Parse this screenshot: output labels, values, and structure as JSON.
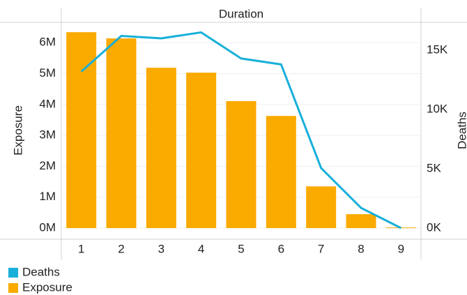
{
  "chart_data": {
    "type": "bar-line",
    "title": "Duration",
    "y_label": "Exposure",
    "y2_label": "Deaths",
    "categories": [
      "1",
      "2",
      "3",
      "4",
      "5",
      "6",
      "7",
      "8",
      "9"
    ],
    "series": [
      {
        "name": "Deaths",
        "type": "line",
        "axis": "y2",
        "color": "#17b0d9",
        "values": [
          13200,
          16200,
          16000,
          16500,
          14300,
          13800,
          5060,
          1700,
          0
        ]
      },
      {
        "name": "Exposure",
        "type": "bar",
        "axis": "y",
        "color": "#fbaa00",
        "values": [
          6340000,
          6140000,
          5190000,
          5030000,
          4110000,
          3630000,
          1350000,
          450000,
          20000
        ]
      }
    ],
    "ylim": [
      -360000,
      6660000
    ],
    "yticks": [
      {
        "value": 0,
        "label": "0M"
      },
      {
        "value": 1000000,
        "label": "1M"
      },
      {
        "value": 2000000,
        "label": "2M"
      },
      {
        "value": 3000000,
        "label": "3M"
      },
      {
        "value": 4000000,
        "label": "4M"
      },
      {
        "value": 5000000,
        "label": "5M"
      },
      {
        "value": 6000000,
        "label": "6M"
      }
    ],
    "y2lim": [
      -940,
      17350
    ],
    "y2ticks": [
      {
        "value": 0,
        "label": "0K"
      },
      {
        "value": 5000,
        "label": "5K"
      },
      {
        "value": 10000,
        "label": "10K"
      },
      {
        "value": 15000,
        "label": "15K"
      }
    ],
    "grid": true,
    "legend": "bottom-left"
  }
}
